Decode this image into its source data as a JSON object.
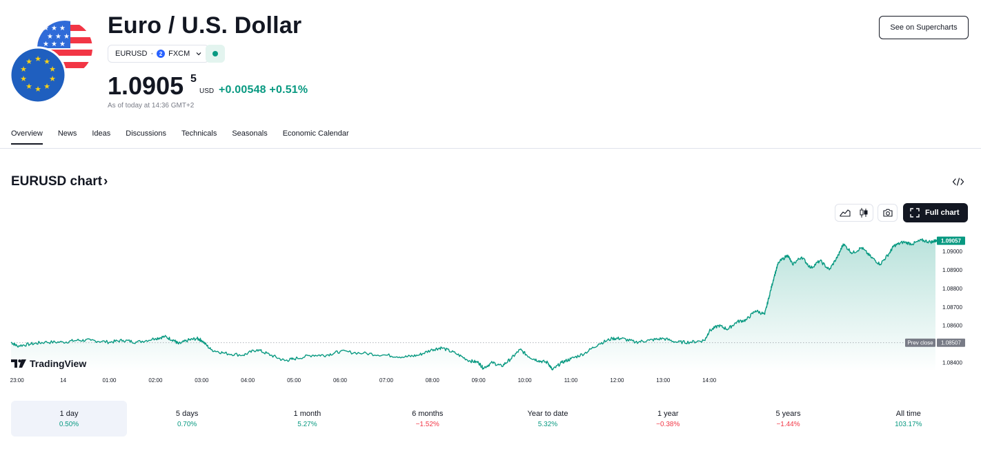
{
  "header": {
    "title": "Euro / U.S. Dollar",
    "symbol": "EURUSD",
    "exchange_sep": "·",
    "exchange": "FXCM",
    "exchange_badge": "2",
    "price_main": "1.0905",
    "price_sup": "5",
    "currency": "USD",
    "change": "+0.00548 +0.51%",
    "as_of": "As of today at 14:36 GMT+2",
    "supercharts_label": "See on Supercharts",
    "status_color": "#089981"
  },
  "tabs": [
    {
      "label": "Overview",
      "active": true
    },
    {
      "label": "News"
    },
    {
      "label": "Ideas"
    },
    {
      "label": "Discussions"
    },
    {
      "label": "Technicals"
    },
    {
      "label": "Seasonals"
    },
    {
      "label": "Economic Calendar"
    }
  ],
  "chart_section": {
    "title": "EURUSD chart",
    "title_arrow": "›",
    "full_chart_label": "Full chart",
    "brand": "TradingView",
    "icons": [
      "embed-icon",
      "area-chart-icon",
      "candles-icon",
      "camera-icon",
      "fullscreen-icon"
    ]
  },
  "chart_data": {
    "type": "area",
    "y_ticks": [
      "1.09000",
      "1.08900",
      "1.08800",
      "1.08700",
      "1.08600",
      "1.08400"
    ],
    "x_ticks": [
      "23:00",
      "14",
      "01:00",
      "02:00",
      "03:00",
      "04:00",
      "05:00",
      "06:00",
      "07:00",
      "08:00",
      "09:00",
      "10:00",
      "11:00",
      "12:00",
      "13:00",
      "14:00"
    ],
    "last_price_label": "1.09057",
    "prev_close_label": "Prev close",
    "prev_close_value": "1.08507",
    "ylim": [
      1.0835,
      1.0913
    ],
    "line_color": "#089981",
    "series": [
      {
        "t": 22.87,
        "v": 1.0851
      },
      {
        "t": 23.0,
        "v": 1.0849
      },
      {
        "t": 23.3,
        "v": 1.085
      },
      {
        "t": 23.6,
        "v": 1.0851
      },
      {
        "t": 24.0,
        "v": 1.0851
      },
      {
        "t": 24.3,
        "v": 1.0852
      },
      {
        "t": 24.6,
        "v": 1.0852
      },
      {
        "t": 25.0,
        "v": 1.0851
      },
      {
        "t": 25.3,
        "v": 1.0852
      },
      {
        "t": 25.6,
        "v": 1.0851
      },
      {
        "t": 26.0,
        "v": 1.0853
      },
      {
        "t": 26.2,
        "v": 1.0854
      },
      {
        "t": 26.4,
        "v": 1.0852
      },
      {
        "t": 26.5,
        "v": 1.085
      },
      {
        "t": 26.7,
        "v": 1.0852
      },
      {
        "t": 26.9,
        "v": 1.0853
      },
      {
        "t": 27.0,
        "v": 1.0852
      },
      {
        "t": 27.2,
        "v": 1.0847
      },
      {
        "t": 27.5,
        "v": 1.0845
      },
      {
        "t": 27.9,
        "v": 1.0844
      },
      {
        "t": 28.2,
        "v": 1.0847
      },
      {
        "t": 28.5,
        "v": 1.0844
      },
      {
        "t": 28.8,
        "v": 1.0841
      },
      {
        "t": 29.0,
        "v": 1.0842
      },
      {
        "t": 29.4,
        "v": 1.0844
      },
      {
        "t": 29.7,
        "v": 1.0844
      },
      {
        "t": 30.0,
        "v": 1.0846
      },
      {
        "t": 30.5,
        "v": 1.0845
      },
      {
        "t": 31.0,
        "v": 1.0844
      },
      {
        "t": 31.4,
        "v": 1.0843
      },
      {
        "t": 31.7,
        "v": 1.0844
      },
      {
        "t": 32.0,
        "v": 1.0847
      },
      {
        "t": 32.2,
        "v": 1.0848
      },
      {
        "t": 32.5,
        "v": 1.0845
      },
      {
        "t": 32.8,
        "v": 1.0841
      },
      {
        "t": 33.0,
        "v": 1.084
      },
      {
        "t": 33.1,
        "v": 1.0837
      },
      {
        "t": 33.3,
        "v": 1.084
      },
      {
        "t": 33.5,
        "v": 1.0838
      },
      {
        "t": 33.7,
        "v": 1.0842
      },
      {
        "t": 33.9,
        "v": 1.0847
      },
      {
        "t": 34.1,
        "v": 1.0843
      },
      {
        "t": 34.3,
        "v": 1.0841
      },
      {
        "t": 34.5,
        "v": 1.084
      },
      {
        "t": 34.6,
        "v": 1.0836
      },
      {
        "t": 34.8,
        "v": 1.084
      },
      {
        "t": 35.0,
        "v": 1.0842
      },
      {
        "t": 35.3,
        "v": 1.0845
      },
      {
        "t": 35.6,
        "v": 1.085
      },
      {
        "t": 35.9,
        "v": 1.0853
      },
      {
        "t": 36.1,
        "v": 1.0853
      },
      {
        "t": 36.4,
        "v": 1.0851
      },
      {
        "t": 36.7,
        "v": 1.0852
      },
      {
        "t": 37.0,
        "v": 1.0853
      },
      {
        "t": 37.3,
        "v": 1.0851
      },
      {
        "t": 37.6,
        "v": 1.0851
      },
      {
        "t": 37.9,
        "v": 1.0852
      },
      {
        "t": 38.0,
        "v": 1.0857
      },
      {
        "t": 38.2,
        "v": 1.086
      },
      {
        "t": 38.4,
        "v": 1.0858
      },
      {
        "t": 38.6,
        "v": 1.0862
      },
      {
        "t": 38.8,
        "v": 1.0863
      },
      {
        "t": 39.0,
        "v": 1.0868
      },
      {
        "t": 39.2,
        "v": 1.0866
      },
      {
        "t": 39.3,
        "v": 1.0876
      },
      {
        "t": 39.4,
        "v": 1.0886
      },
      {
        "t": 39.5,
        "v": 1.0894
      },
      {
        "t": 39.7,
        "v": 1.0898
      },
      {
        "t": 39.8,
        "v": 1.0893
      },
      {
        "t": 40.0,
        "v": 1.0897
      },
      {
        "t": 40.2,
        "v": 1.0891
      },
      {
        "t": 40.4,
        "v": 1.0895
      },
      {
        "t": 40.6,
        "v": 1.089
      },
      {
        "t": 40.8,
        "v": 1.0898
      },
      {
        "t": 40.9,
        "v": 1.0904
      },
      {
        "t": 41.1,
        "v": 1.0899
      },
      {
        "t": 41.3,
        "v": 1.0902
      },
      {
        "t": 41.5,
        "v": 1.0897
      },
      {
        "t": 41.7,
        "v": 1.0893
      },
      {
        "t": 41.9,
        "v": 1.0899
      },
      {
        "t": 42.0,
        "v": 1.0903
      },
      {
        "t": 42.2,
        "v": 1.0905
      },
      {
        "t": 42.4,
        "v": 1.0904
      },
      {
        "t": 42.6,
        "v": 1.0906
      },
      {
        "t": 42.8,
        "v": 1.0905
      },
      {
        "t": 42.9,
        "v": 1.09057
      }
    ]
  },
  "periods": [
    {
      "label": "1 day",
      "value": "0.50%",
      "sign": "pos",
      "active": true
    },
    {
      "label": "5 days",
      "value": "0.70%",
      "sign": "pos"
    },
    {
      "label": "1 month",
      "value": "5.27%",
      "sign": "pos"
    },
    {
      "label": "6 months",
      "value": "−1.52%",
      "sign": "neg"
    },
    {
      "label": "Year to date",
      "value": "5.32%",
      "sign": "pos"
    },
    {
      "label": "1 year",
      "value": "−0.38%",
      "sign": "neg"
    },
    {
      "label": "5 years",
      "value": "−1.44%",
      "sign": "neg"
    },
    {
      "label": "All time",
      "value": "103.17%",
      "sign": "pos"
    }
  ]
}
